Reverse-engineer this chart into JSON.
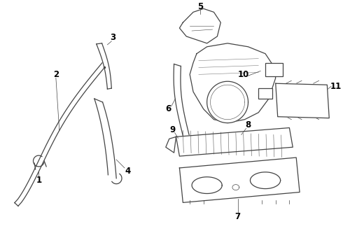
{
  "bg_color": "#ffffff",
  "line_color": "#444444",
  "text_color": "#000000",
  "fig_width": 4.9,
  "fig_height": 3.6,
  "dpi": 100
}
